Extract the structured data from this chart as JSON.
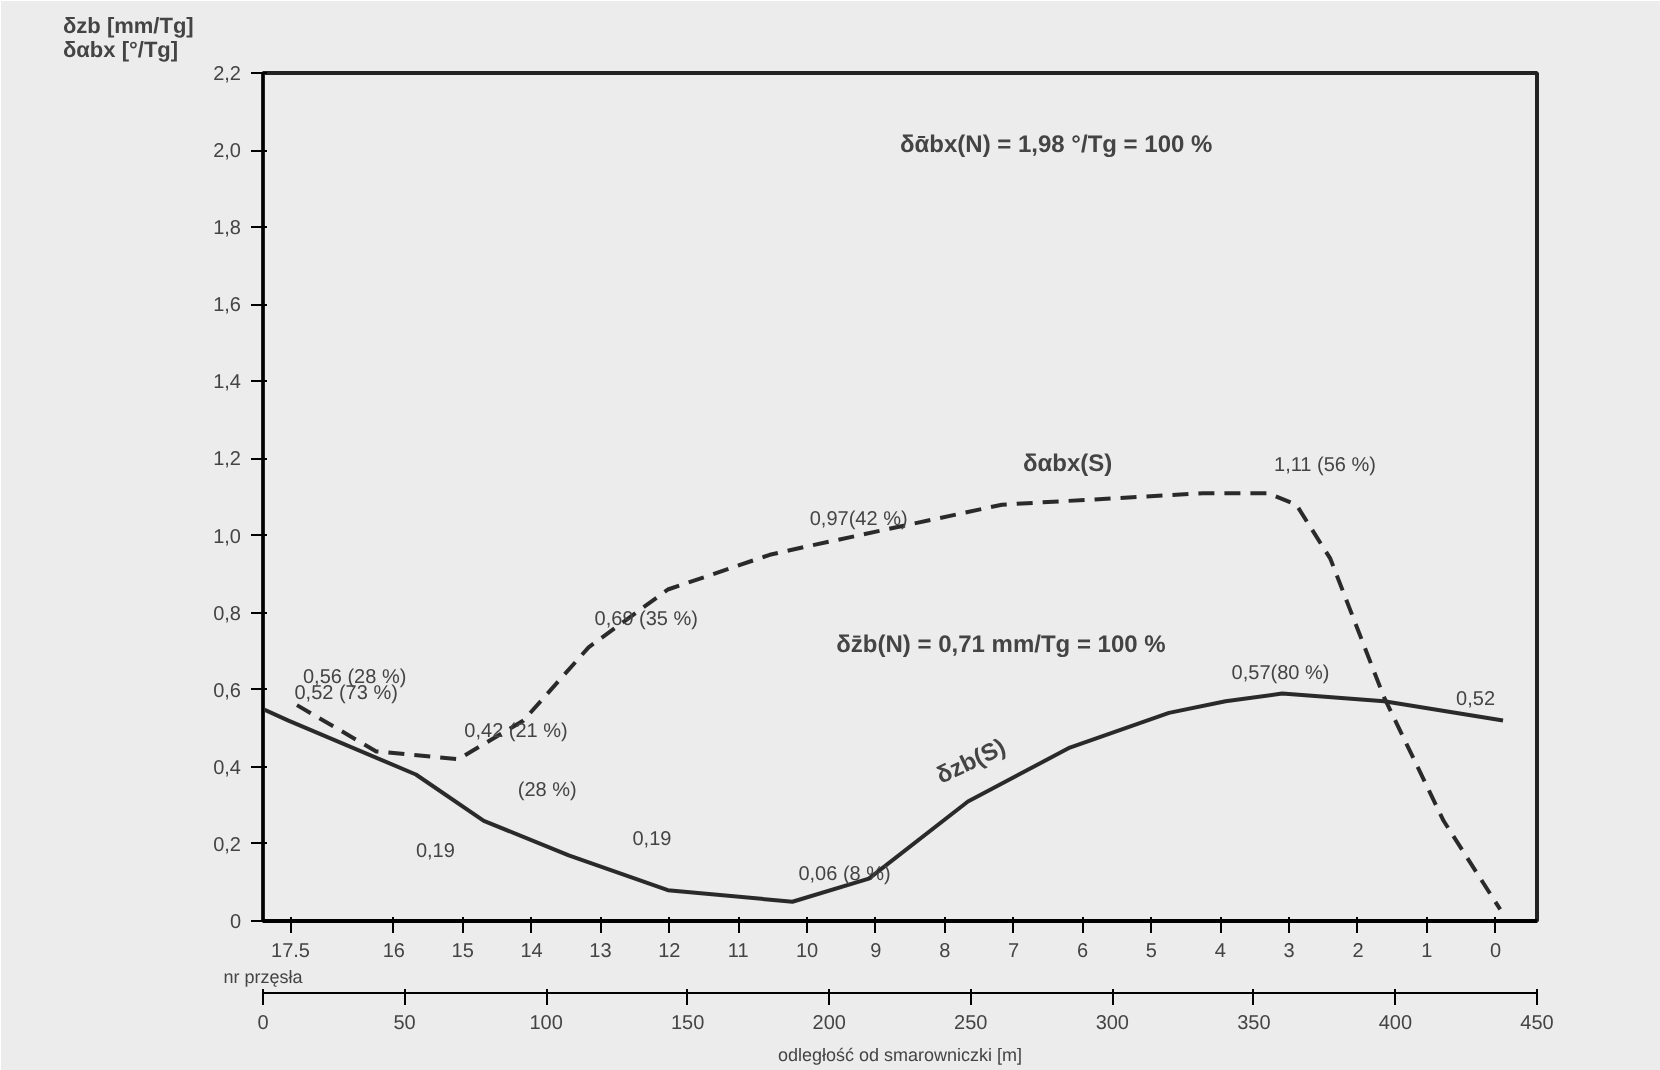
{
  "chart_data": {
    "type": "line",
    "xlabel": "odległość od smarowniczki [m]",
    "ylabel": "δzb [mm/Tg]\nδαbx [°/Tg]",
    "x2label": "nr przęsła",
    "xlim": [
      0,
      450
    ],
    "xticks": [
      0,
      50,
      100,
      150,
      200,
      250,
      300,
      350,
      400,
      450
    ],
    "x2lim": [
      17.9,
      -0.6
    ],
    "x2ticks": [
      17.5,
      16,
      15,
      14,
      13,
      12,
      11,
      10,
      9,
      8,
      7,
      6,
      5,
      4,
      3,
      2,
      1,
      0
    ],
    "ylim": [
      0,
      2.2
    ],
    "yticks": [
      0,
      {
        "value": 0.2,
        "label": "0,2"
      },
      {
        "value": 0.4,
        "label": "0,4"
      },
      {
        "value": 0.6,
        "label": "0,6"
      },
      {
        "value": 0.8,
        "label": "0,8"
      },
      {
        "value": 1.0,
        "label": "1,0"
      },
      {
        "value": 1.2,
        "label": "1,2"
      },
      {
        "value": 1.4,
        "label": "1,4"
      },
      {
        "value": 1.6,
        "label": "1,6"
      },
      {
        "value": 1.8,
        "label": "1,8"
      },
      {
        "value": 2.0,
        "label": "2,0"
      },
      {
        "value": 2.2,
        "label": "2,2"
      }
    ],
    "grid": false,
    "marker": "none",
    "series": [
      {
        "name": "δzb(S)",
        "color": "#2a2a2a",
        "line_style": "solid",
        "x": [
          0,
          9,
          54,
          78,
          108,
          143,
          187,
          214,
          249,
          285,
          320,
          340,
          360,
          396,
          438
        ],
        "values": [
          0.55,
          0.52,
          0.38,
          0.26,
          0.17,
          0.08,
          0.05,
          0.11,
          0.31,
          0.45,
          0.54,
          0.57,
          0.59,
          0.57,
          0.52
        ]
      },
      {
        "name": "δαbx(S)",
        "color": "#2a2a2a",
        "line_style": "dashed",
        "x": [
          12,
          40,
          69,
          92,
          115,
          143,
          179,
          191,
          261,
          332,
          355,
          365,
          377,
          396,
          417,
          437
        ],
        "values": [
          0.56,
          0.44,
          0.42,
          0.52,
          0.71,
          0.86,
          0.95,
          0.97,
          1.08,
          1.11,
          1.11,
          1.08,
          0.94,
          0.58,
          0.26,
          0.03
        ]
      }
    ],
    "annotations": [
      {
        "text": "0,56 (28 %)",
        "x": 12,
        "y": 0.56
      },
      {
        "text": "0,52 (73 %)",
        "x": 9,
        "y": 0.52
      },
      {
        "text": "0,42 (21 %)",
        "x": 69,
        "y": 0.42
      },
      {
        "text": "0,69 (35 %)",
        "x": 115,
        "y": 0.71
      },
      {
        "text": "0,97(42 %)",
        "x": 191,
        "y": 0.97
      },
      {
        "text": "1,11 (56 %)",
        "x": 355,
        "y": 1.11
      },
      {
        "text": "0,57(80 %)",
        "x": 340,
        "y": 0.57
      },
      {
        "text": "0,52",
        "x": 438,
        "y": 0.52
      },
      {
        "text": "0,06 (8 %)",
        "x": 187,
        "y": 0.05
      },
      "0,19",
      "(28 %)",
      "0,19",
      "δᾱbx(N) = 1,98 °/Tg = 100 %",
      "δz̄b(N) = 0,71 mm/Tg = 100 %"
    ]
  }
}
